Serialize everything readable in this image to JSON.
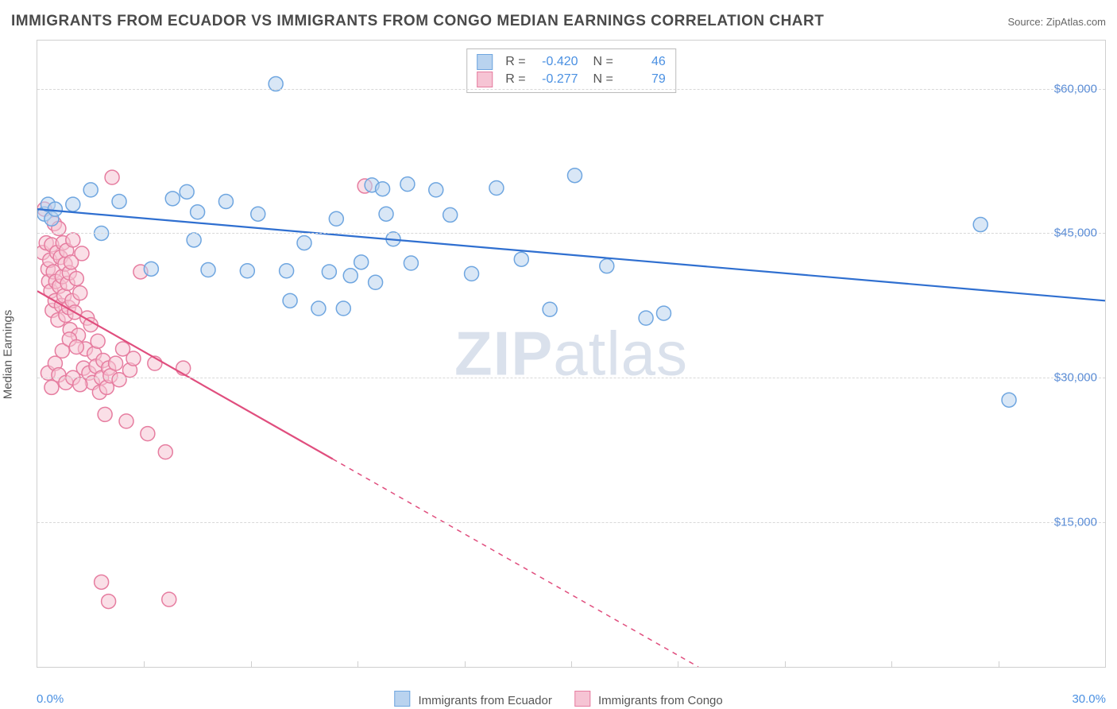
{
  "title": "IMMIGRANTS FROM ECUADOR VS IMMIGRANTS FROM CONGO MEDIAN EARNINGS CORRELATION CHART",
  "source": "Source: ZipAtlas.com",
  "watermark": {
    "bold": "ZIP",
    "rest": "atlas"
  },
  "chart": {
    "type": "scatter",
    "background_color": "#ffffff",
    "border_color": "#cfcfcf",
    "grid_color": "#d8d8d8",
    "text_color": "#555555",
    "value_color": "#4a90e2",
    "ylabel": "Median Earnings",
    "xlim": [
      0,
      30
    ],
    "ylim": [
      0,
      65000
    ],
    "yticks": [
      15000,
      30000,
      45000,
      60000
    ],
    "ytick_labels": [
      "$15,000",
      "$30,000",
      "$45,000",
      "$60,000"
    ],
    "xtick_positions": [
      3,
      6,
      9,
      12,
      15,
      18,
      21,
      24,
      27,
      30
    ],
    "x_axis_labels": {
      "left": "0.0%",
      "right": "30.0%"
    },
    "marker_radius": 9,
    "marker_opacity": 0.55,
    "line_width": 2.2,
    "series": [
      {
        "name": "Immigrants from Ecuador",
        "color": "#6fa6e0",
        "line_color": "#2f6fd0",
        "fill": "#b9d3ef",
        "R": "-0.420",
        "N": "46",
        "trend": {
          "x1": 0,
          "y1": 47500,
          "x2": 30,
          "y2": 38000,
          "dash_after_x": null
        },
        "points": [
          [
            0.2,
            47000
          ],
          [
            0.3,
            48000
          ],
          [
            0.4,
            46500
          ],
          [
            0.5,
            47500
          ],
          [
            1.0,
            48000
          ],
          [
            1.5,
            49500
          ],
          [
            1.8,
            45000
          ],
          [
            2.3,
            48300
          ],
          [
            3.2,
            41300
          ],
          [
            3.8,
            48600
          ],
          [
            4.2,
            49300
          ],
          [
            4.4,
            44300
          ],
          [
            4.5,
            47200
          ],
          [
            4.8,
            41200
          ],
          [
            5.3,
            48300
          ],
          [
            5.9,
            41100
          ],
          [
            6.2,
            47000
          ],
          [
            6.7,
            60500
          ],
          [
            7.0,
            41100
          ],
          [
            7.1,
            38000
          ],
          [
            7.5,
            44000
          ],
          [
            7.9,
            37200
          ],
          [
            8.2,
            41000
          ],
          [
            8.4,
            46500
          ],
          [
            8.6,
            37200
          ],
          [
            8.8,
            40600
          ],
          [
            9.1,
            42000
          ],
          [
            9.4,
            50000
          ],
          [
            9.5,
            39900
          ],
          [
            9.7,
            49600
          ],
          [
            9.8,
            47000
          ],
          [
            10.0,
            44400
          ],
          [
            10.4,
            50100
          ],
          [
            10.5,
            41900
          ],
          [
            11.2,
            49500
          ],
          [
            11.6,
            46900
          ],
          [
            12.2,
            40800
          ],
          [
            12.9,
            49700
          ],
          [
            13.6,
            42300
          ],
          [
            14.4,
            37100
          ],
          [
            15.1,
            51000
          ],
          [
            16.0,
            41600
          ],
          [
            17.1,
            36200
          ],
          [
            17.6,
            36700
          ],
          [
            26.5,
            45900
          ],
          [
            27.3,
            27700
          ]
        ]
      },
      {
        "name": "Immigrants from Congo",
        "color": "#e67da0",
        "line_color": "#e04e7e",
        "fill": "#f6c4d4",
        "R": "-0.277",
        "N": "79",
        "trend": {
          "x1": 0,
          "y1": 39000,
          "x2": 30,
          "y2": -24000,
          "dash_after_x": 8.3
        },
        "points": [
          [
            0.15,
            43000
          ],
          [
            0.2,
            47500
          ],
          [
            0.25,
            44000
          ],
          [
            0.3,
            41300
          ],
          [
            0.32,
            40000
          ],
          [
            0.35,
            42200
          ],
          [
            0.38,
            39000
          ],
          [
            0.4,
            43800
          ],
          [
            0.42,
            37000
          ],
          [
            0.45,
            41000
          ],
          [
            0.48,
            46000
          ],
          [
            0.5,
            38000
          ],
          [
            0.52,
            40000
          ],
          [
            0.55,
            43000
          ],
          [
            0.58,
            36000
          ],
          [
            0.6,
            45500
          ],
          [
            0.62,
            39500
          ],
          [
            0.65,
            42500
          ],
          [
            0.68,
            37500
          ],
          [
            0.7,
            40500
          ],
          [
            0.72,
            44000
          ],
          [
            0.75,
            38500
          ],
          [
            0.78,
            41800
          ],
          [
            0.8,
            36500
          ],
          [
            0.82,
            43200
          ],
          [
            0.85,
            39800
          ],
          [
            0.88,
            37300
          ],
          [
            0.9,
            40900
          ],
          [
            0.92,
            35000
          ],
          [
            0.95,
            42000
          ],
          [
            0.98,
            38000
          ],
          [
            1.0,
            44300
          ],
          [
            1.05,
            36800
          ],
          [
            1.1,
            40300
          ],
          [
            1.15,
            34400
          ],
          [
            1.2,
            38800
          ],
          [
            1.25,
            42900
          ],
          [
            1.3,
            31000
          ],
          [
            1.35,
            33000
          ],
          [
            1.4,
            36200
          ],
          [
            1.45,
            30500
          ],
          [
            1.5,
            35500
          ],
          [
            1.55,
            29500
          ],
          [
            1.6,
            32500
          ],
          [
            1.65,
            31200
          ],
          [
            1.7,
            33800
          ],
          [
            1.75,
            28500
          ],
          [
            1.8,
            30000
          ],
          [
            1.85,
            31800
          ],
          [
            1.9,
            26200
          ],
          [
            1.95,
            29000
          ],
          [
            2.0,
            31000
          ],
          [
            2.05,
            30200
          ],
          [
            2.1,
            50800
          ],
          [
            2.2,
            31500
          ],
          [
            2.3,
            29800
          ],
          [
            2.4,
            33000
          ],
          [
            2.5,
            25500
          ],
          [
            2.6,
            30800
          ],
          [
            2.7,
            32000
          ],
          [
            2.9,
            41000
          ],
          [
            3.1,
            24200
          ],
          [
            3.3,
            31500
          ],
          [
            3.6,
            22300
          ],
          [
            4.1,
            31000
          ],
          [
            1.8,
            8800
          ],
          [
            2.0,
            6800
          ],
          [
            3.7,
            7000
          ],
          [
            9.2,
            49900
          ],
          [
            0.3,
            30500
          ],
          [
            0.4,
            29000
          ],
          [
            0.5,
            31500
          ],
          [
            0.6,
            30300
          ],
          [
            0.7,
            32800
          ],
          [
            0.8,
            29500
          ],
          [
            0.9,
            34000
          ],
          [
            1.0,
            30000
          ],
          [
            1.1,
            33200
          ],
          [
            1.2,
            29300
          ]
        ]
      }
    ],
    "bottom_legend": [
      {
        "label": "Immigrants from Ecuador",
        "fill": "#b9d3ef",
        "border": "#6fa6e0"
      },
      {
        "label": "Immigrants from Congo",
        "fill": "#f6c4d4",
        "border": "#e67da0"
      }
    ]
  }
}
